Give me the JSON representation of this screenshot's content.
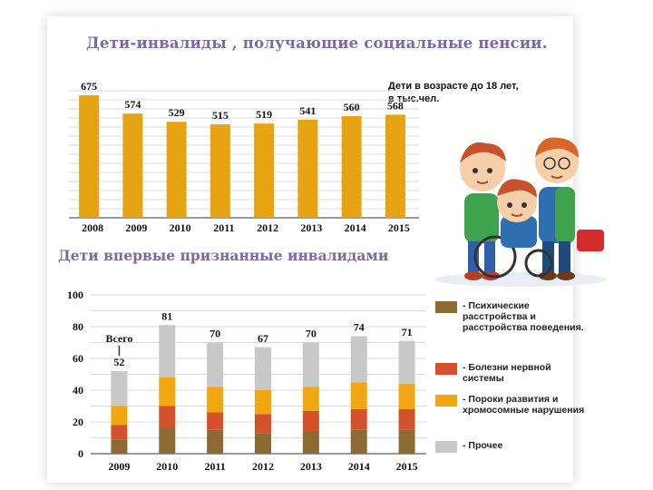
{
  "title_top": "Дети-инвалиды , получающие социальные пенсии.",
  "title_bottom": "Дети впервые признанные инвалидами",
  "note": "Дети в возрасте до 18 лет,\nв тыс.чел.",
  "colors": {
    "bar_top": "#e6a312",
    "psych": "#8b6a33",
    "nervous": "#d3522b",
    "malform": "#f2a611",
    "other": "#c8c8c8"
  },
  "chart_data": [
    {
      "type": "bar",
      "title": "Дети-инвалиды , получающие социальные пенсии.",
      "categories": [
        "2008",
        "2009",
        "2010",
        "2011",
        "2012",
        "2013",
        "2014",
        "2015"
      ],
      "values": [
        675,
        574,
        529,
        515,
        519,
        541,
        560,
        568
      ],
      "labels": [
        "675",
        "574",
        "529",
        "515",
        "519",
        "541",
        "560",
        "568"
      ],
      "ylim": [
        0,
        700
      ],
      "grid": true
    },
    {
      "type": "bar",
      "stacked": true,
      "title": "Дети впервые признанные инвалидами",
      "categories": [
        "2009",
        "2010",
        "2011",
        "2012",
        "2013",
        "2014",
        "2015"
      ],
      "series": [
        {
          "name": "- Психические расстройства и расстройства поведения.",
          "values": [
            9,
            16,
            15,
            13,
            14,
            15,
            15
          ]
        },
        {
          "name": "- Болезни нервной системы",
          "values": [
            9,
            14,
            11,
            12,
            13,
            13,
            13
          ]
        },
        {
          "name": "- Пороки развития и хромосомные нарушения",
          "values": [
            12,
            18,
            16,
            15,
            15,
            17,
            16
          ]
        },
        {
          "name": "- Прочее",
          "values": [
            22,
            33,
            28,
            27,
            28,
            29,
            27
          ]
        }
      ],
      "totals": [
        "52",
        "81",
        "70",
        "67",
        "70",
        "74",
        "71"
      ],
      "total_label": "Всего",
      "yticks": [
        "100",
        "80",
        "60",
        "40",
        "20",
        "0"
      ],
      "ylim": [
        0,
        100
      ],
      "grid": true,
      "legend": "right"
    }
  ]
}
